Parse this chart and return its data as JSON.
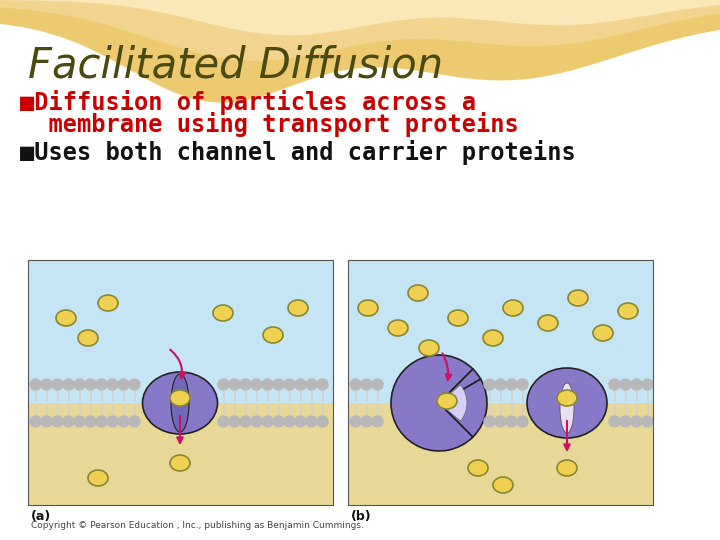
{
  "title": "Facilitated Diffusion",
  "title_color": "#4a4a10",
  "title_fontsize": 30,
  "bullet1_text1": "■Diffusion of particles across a",
  "bullet1_text2": "  membrane using transport proteins",
  "bullet1_color": "#cc0000",
  "bullet1_fontsize": 17,
  "bullet2_text": "■Uses both channel and carrier proteins",
  "bullet2_color": "#111111",
  "bullet2_fontsize": 17,
  "bg_color": "#ffffff",
  "label_a": "(a)",
  "label_b": "(b)",
  "caption": "Copyright © Pearson Education , Inc., publishing as Benjamin Cummings.",
  "caption_fontsize": 6.5,
  "protein_color": "#8878c8",
  "protein_color2": "#9888d0",
  "particle_color": "#f0d050",
  "particle_edge": "#888833",
  "sky_color": "#c5e5f5",
  "ground_color": "#e8d898",
  "membrane_head_color": "#b8b8b8",
  "membrane_tail_color": "#d0d0d0",
  "arrow_color": "#cc1166"
}
